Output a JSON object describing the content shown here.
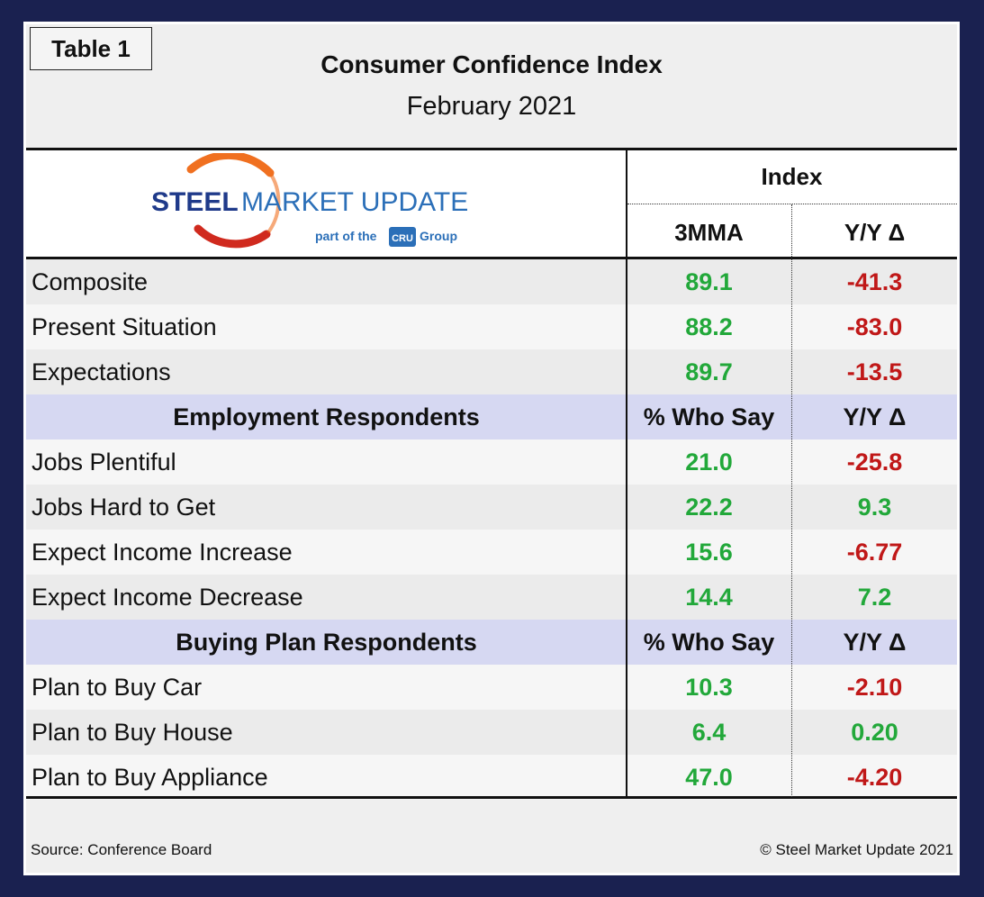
{
  "tag": "Table 1",
  "title": "Consumer Confidence Index",
  "subtitle": "February 2021",
  "logo": {
    "name_bold": "STEEL",
    "name_light": " MARKET UPDATE",
    "tagline_pre": "part of the",
    "tagline_badge": "CRU",
    "tagline_post": "Group",
    "colors": {
      "navy": "#1f3a8a",
      "blue": "#2b6fb8",
      "orange": "#f07020",
      "red": "#d02a1e"
    }
  },
  "header": {
    "group_label": "Index",
    "col1": "3MMA",
    "col2": "Y/Y Δ"
  },
  "rows": [
    {
      "type": "data",
      "label": "Composite",
      "v1": "89.1",
      "v2": "-41.3",
      "v2_sign": "neg"
    },
    {
      "type": "data",
      "label": "Present Situation",
      "v1": "88.2",
      "v2": "-83.0",
      "v2_sign": "neg"
    },
    {
      "type": "data",
      "label": "Expectations",
      "v1": "89.7",
      "v2": "-13.5",
      "v2_sign": "neg"
    },
    {
      "type": "section",
      "label": "Employment Respondents",
      "v1": "% Who Say",
      "v2": "Y/Y Δ"
    },
    {
      "type": "data",
      "label": "Jobs Plentiful",
      "v1": "21.0",
      "v2": "-25.8",
      "v2_sign": "neg"
    },
    {
      "type": "data",
      "label": "Jobs Hard to Get",
      "v1": "22.2",
      "v2": "9.3",
      "v2_sign": "pos"
    },
    {
      "type": "data",
      "label": "Expect Income Increase",
      "v1": "15.6",
      "v2": "-6.77",
      "v2_sign": "neg"
    },
    {
      "type": "data",
      "label": "Expect Income Decrease",
      "v1": "14.4",
      "v2": "7.2",
      "v2_sign": "pos"
    },
    {
      "type": "section",
      "label": "Buying Plan Respondents",
      "v1": "% Who Say",
      "v2": "Y/Y Δ"
    },
    {
      "type": "data",
      "label": "Plan to Buy Car",
      "v1": "10.3",
      "v2": "-2.10",
      "v2_sign": "neg"
    },
    {
      "type": "data",
      "label": "Plan to Buy House",
      "v1": "6.4",
      "v2": "0.20",
      "v2_sign": "pos"
    },
    {
      "type": "data",
      "label": "Plan to Buy Appliance",
      "v1": "47.0",
      "v2": "-4.20",
      "v2_sign": "neg"
    }
  ],
  "footer": {
    "source": "Source: Conference Board",
    "copyright": "© Steel Market Update 2021"
  }
}
